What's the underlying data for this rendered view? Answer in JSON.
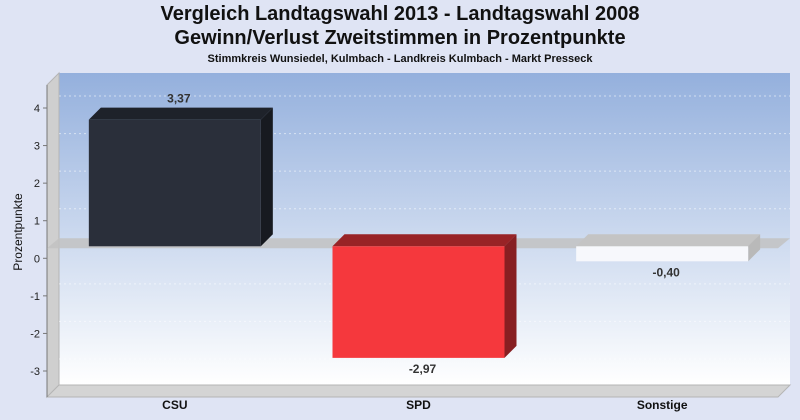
{
  "chart_data": {
    "type": "bar",
    "title": "Vergleich Landtagswahl 2013 - Landtagswahl 2008",
    "title2": "Gewinn/Verlust Zweitstimmen in Prozentpunkte",
    "subtitle": "Stimmkreis Wunsiedel, Kulmbach - Landkreis Kulmbach - Markt Presseck",
    "ylabel": "Prozentpunkte",
    "ylim": [
      -4,
      4.5
    ],
    "yticks": [
      4,
      3,
      2,
      1,
      0,
      -1,
      -2,
      -3
    ],
    "categories": [
      "CSU",
      "SPD",
      "Sonstige"
    ],
    "values": [
      3.37,
      -2.97,
      -0.4
    ],
    "value_labels": [
      "3,37",
      "-2,97",
      "-0,40"
    ],
    "colors": [
      "#2a2f3a",
      "#f5383d",
      "#f7f8fc"
    ],
    "grid": true
  }
}
